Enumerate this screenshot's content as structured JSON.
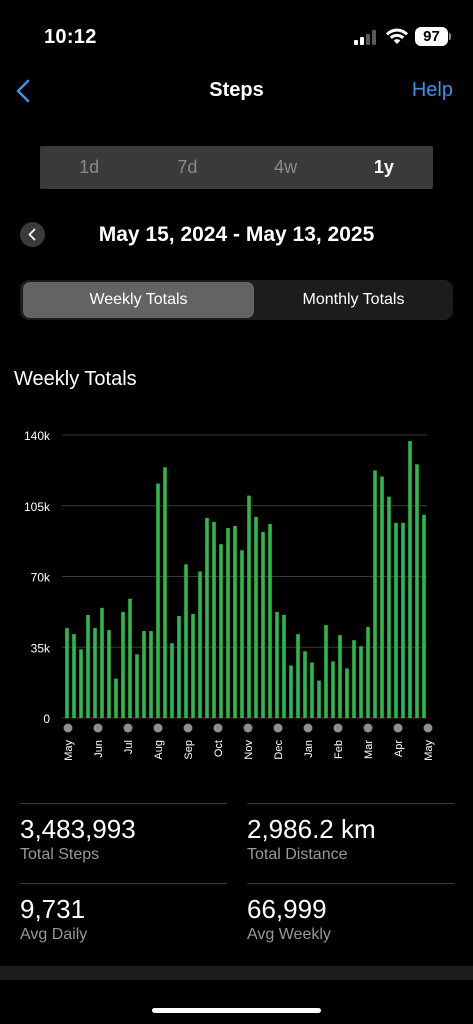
{
  "status_bar": {
    "time": "10:12",
    "battery": "97"
  },
  "nav": {
    "title": "Steps",
    "help": "Help"
  },
  "ranges": [
    {
      "label": "1d",
      "active": false
    },
    {
      "label": "7d",
      "active": false
    },
    {
      "label": "4w",
      "active": false
    },
    {
      "label": "1y",
      "active": true
    }
  ],
  "date_range": "May 15, 2024 - May 13, 2025",
  "totals_toggle": {
    "weekly": "Weekly Totals",
    "monthly": "Monthly Totals",
    "selected": "weekly"
  },
  "chart_heading": "Weekly Totals",
  "chart_data": {
    "type": "bar",
    "title": "Weekly Totals",
    "xlabel": "",
    "ylabel": "",
    "ylim": [
      0,
      140000
    ],
    "y_ticks": [
      "0",
      "35k",
      "70k",
      "105k",
      "140k"
    ],
    "y_tick_values": [
      0,
      35000,
      70000,
      105000,
      140000
    ],
    "x_tick_labels": [
      "May",
      "Jun",
      "Jul",
      "Aug",
      "Sep",
      "Oct",
      "Nov",
      "Dec",
      "Jan",
      "Feb",
      "Mar",
      "Apr",
      "May"
    ],
    "grid": true,
    "bar_color": "#2db84a",
    "values": [
      44500,
      41500,
      34000,
      51000,
      44500,
      54500,
      43500,
      19500,
      52500,
      59000,
      31500,
      43000,
      43000,
      116000,
      124000,
      37000,
      50500,
      76000,
      51500,
      72500,
      99000,
      97000,
      86000,
      94000,
      95000,
      83000,
      110000,
      99500,
      92000,
      96000,
      52500,
      51000,
      26000,
      41500,
      33000,
      27500,
      18500,
      46000,
      28000,
      41000,
      24500,
      38500,
      35500,
      45000,
      122500,
      119500,
      109500,
      96500,
      96500,
      137000,
      125500,
      100500
    ]
  },
  "stats": [
    {
      "value": "3,483,993",
      "label": "Total Steps"
    },
    {
      "value": "2,986.2 km",
      "label": "Total Distance"
    },
    {
      "value": "9,731",
      "label": "Avg Daily"
    },
    {
      "value": "66,999",
      "label": "Avg Weekly"
    }
  ],
  "colors": {
    "accent": "#3e8fe8",
    "bar": "#2db84a",
    "background": "#000000"
  }
}
